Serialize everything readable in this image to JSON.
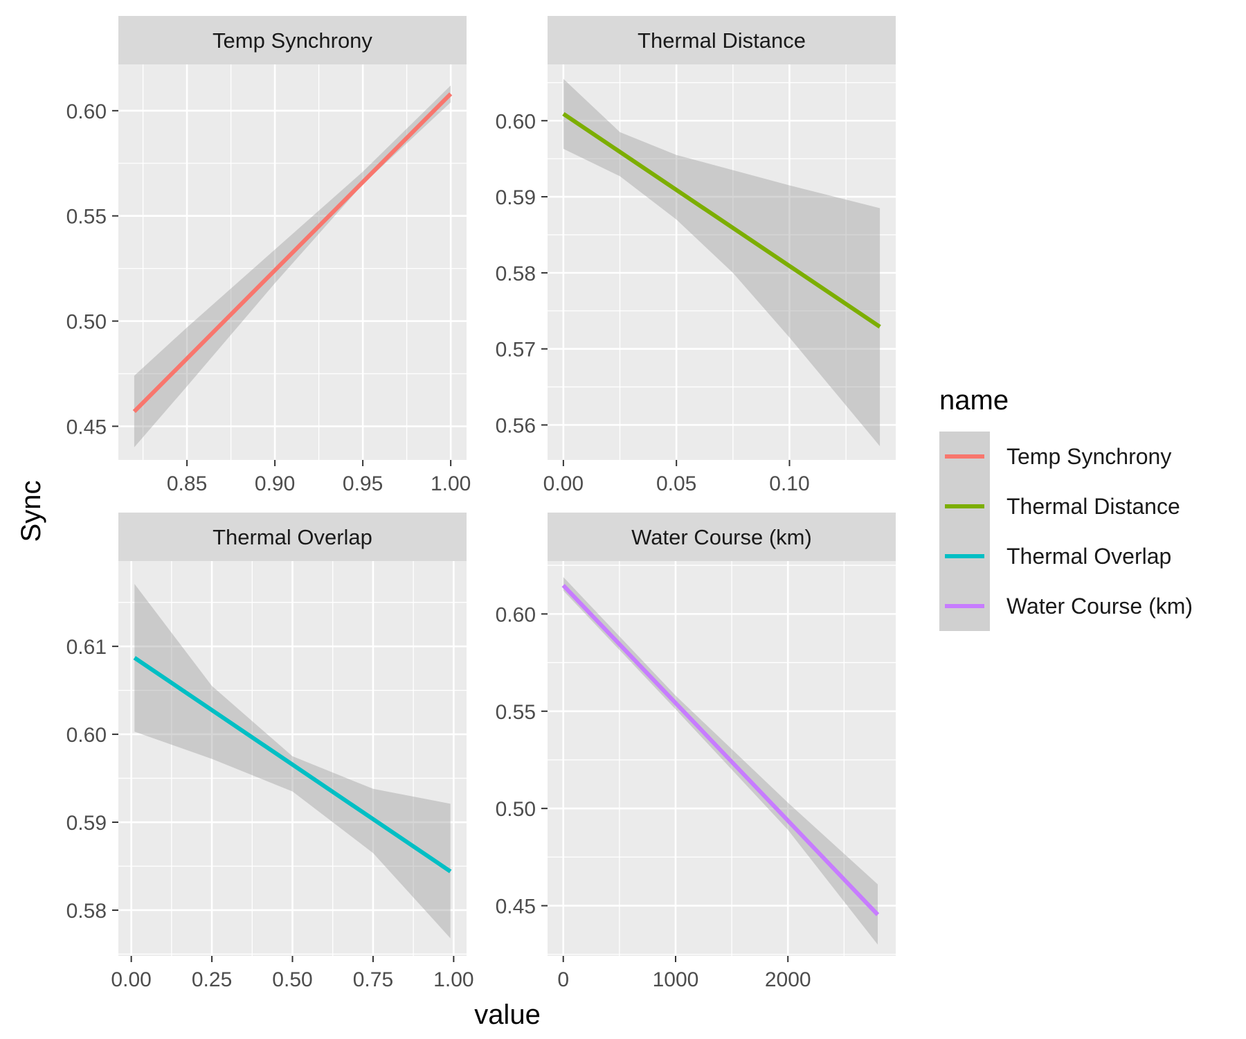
{
  "chart_data": {
    "type": "line",
    "xlabel": "value",
    "ylabel": "Sync",
    "grid": true,
    "legend": {
      "title": "name",
      "position": "right",
      "entries": [
        "Temp Synchrony",
        "Thermal Distance",
        "Thermal Overlap",
        "Water Course (km)"
      ]
    },
    "panels": [
      {
        "title": "Temp Synchrony",
        "color": "#F8766D",
        "xlim": [
          0.811,
          1.009
        ],
        "ylim": [
          0.434,
          0.622
        ],
        "x_ticks": [
          0.85,
          0.9,
          0.95,
          1.0
        ],
        "x_tick_labels": [
          "0.85",
          "0.90",
          "0.95",
          "1.00"
        ],
        "y_ticks": [
          0.45,
          0.5,
          0.55,
          0.6
        ],
        "y_tick_labels": [
          "0.45",
          "0.50",
          "0.55",
          "0.60"
        ],
        "series": [
          {
            "name": "Temp Synchrony",
            "x": [
              0.82,
              1.0
            ],
            "y": [
              0.457,
              0.608
            ]
          },
          {
            "name": "Temp Synchrony",
            "x": [
              0.82,
              0.85,
              0.9,
              0.95,
              1.0
            ],
            "y": [
              0.474,
              0.497,
              0.534,
              0.571,
              0.612
            ]
          },
          {
            "name": "Temp Synchrony",
            "x": [
              0.82,
              0.85,
              0.9,
              0.95,
              1.0
            ],
            "y": [
              0.44,
              0.469,
              0.518,
              0.565,
              0.604
            ]
          }
        ],
        "band_upper": {
          "x": [
            0.82,
            0.85,
            0.9,
            0.95,
            1.0
          ],
          "y": [
            0.474,
            0.497,
            0.534,
            0.571,
            0.612
          ]
        },
        "band_lower": {
          "x": [
            0.82,
            0.85,
            0.9,
            0.95,
            1.0
          ],
          "y": [
            0.44,
            0.469,
            0.518,
            0.565,
            0.604
          ]
        },
        "line": {
          "x": [
            0.82,
            1.0
          ],
          "y": [
            0.457,
            0.608
          ]
        }
      },
      {
        "title": "Thermal Distance",
        "color": "#7CAE00",
        "xlim": [
          -0.007,
          0.147
        ],
        "ylim": [
          0.5554,
          0.6074
        ],
        "x_ticks": [
          0.0,
          0.05,
          0.1
        ],
        "x_tick_labels": [
          "0.00",
          "0.05",
          "0.10"
        ],
        "y_ticks": [
          0.56,
          0.57,
          0.58,
          0.59,
          0.6
        ],
        "y_tick_labels": [
          "0.56",
          "0.57",
          "0.58",
          "0.59",
          "0.60"
        ],
        "band_upper": {
          "x": [
            0.0,
            0.025,
            0.05,
            0.075,
            0.1,
            0.14
          ],
          "y": [
            0.6055,
            0.5985,
            0.5955,
            0.5935,
            0.5915,
            0.5885
          ]
        },
        "band_lower": {
          "x": [
            0.0,
            0.025,
            0.05,
            0.075,
            0.1,
            0.14
          ],
          "y": [
            0.5963,
            0.5927,
            0.587,
            0.58,
            0.5715,
            0.5572
          ]
        },
        "line": {
          "x": [
            0.0,
            0.14
          ],
          "y": [
            0.6009,
            0.5729
          ]
        }
      },
      {
        "title": "Thermal Overlap",
        "color": "#00BFC4",
        "xlim": [
          -0.04,
          1.04
        ],
        "ylim": [
          0.5748,
          0.6197
        ],
        "x_ticks": [
          0.0,
          0.25,
          0.5,
          0.75,
          1.0
        ],
        "x_tick_labels": [
          "0.00",
          "0.25",
          "0.50",
          "0.75",
          "1.00"
        ],
        "y_ticks": [
          0.58,
          0.59,
          0.6,
          0.61
        ],
        "y_tick_labels": [
          "0.58",
          "0.59",
          "0.60",
          "0.61"
        ],
        "band_upper": {
          "x": [
            0.01,
            0.25,
            0.5,
            0.75,
            0.99
          ],
          "y": [
            0.6171,
            0.6055,
            0.5975,
            0.5938,
            0.5921
          ]
        },
        "band_lower": {
          "x": [
            0.01,
            0.25,
            0.5,
            0.75,
            0.99
          ],
          "y": [
            0.6003,
            0.5972,
            0.5935,
            0.5865,
            0.5768
          ]
        },
        "line": {
          "x": [
            0.01,
            0.99
          ],
          "y": [
            0.6087,
            0.5844
          ]
        }
      },
      {
        "title": "Water Course (km)",
        "color": "#C77CFF",
        "xlim": [
          -140,
          2960
        ],
        "ylim": [
          0.4242,
          0.6272
        ],
        "x_ticks": [
          0,
          1000,
          2000
        ],
        "x_tick_labels": [
          "0",
          "1000",
          "2000"
        ],
        "y_ticks": [
          0.45,
          0.5,
          0.55,
          0.6
        ],
        "y_tick_labels": [
          "0.45",
          "0.50",
          "0.55",
          "0.60"
        ],
        "band_upper": {
          "x": [
            0,
            1000,
            2000,
            2800
          ],
          "y": [
            0.619,
            0.558,
            0.503,
            0.461
          ]
        },
        "band_lower": {
          "x": [
            0,
            1000,
            2000,
            2800
          ],
          "y": [
            0.612,
            0.551,
            0.489,
            0.43
          ]
        },
        "line": {
          "x": [
            0,
            2800
          ],
          "y": [
            0.6147,
            0.4454
          ]
        }
      }
    ]
  }
}
